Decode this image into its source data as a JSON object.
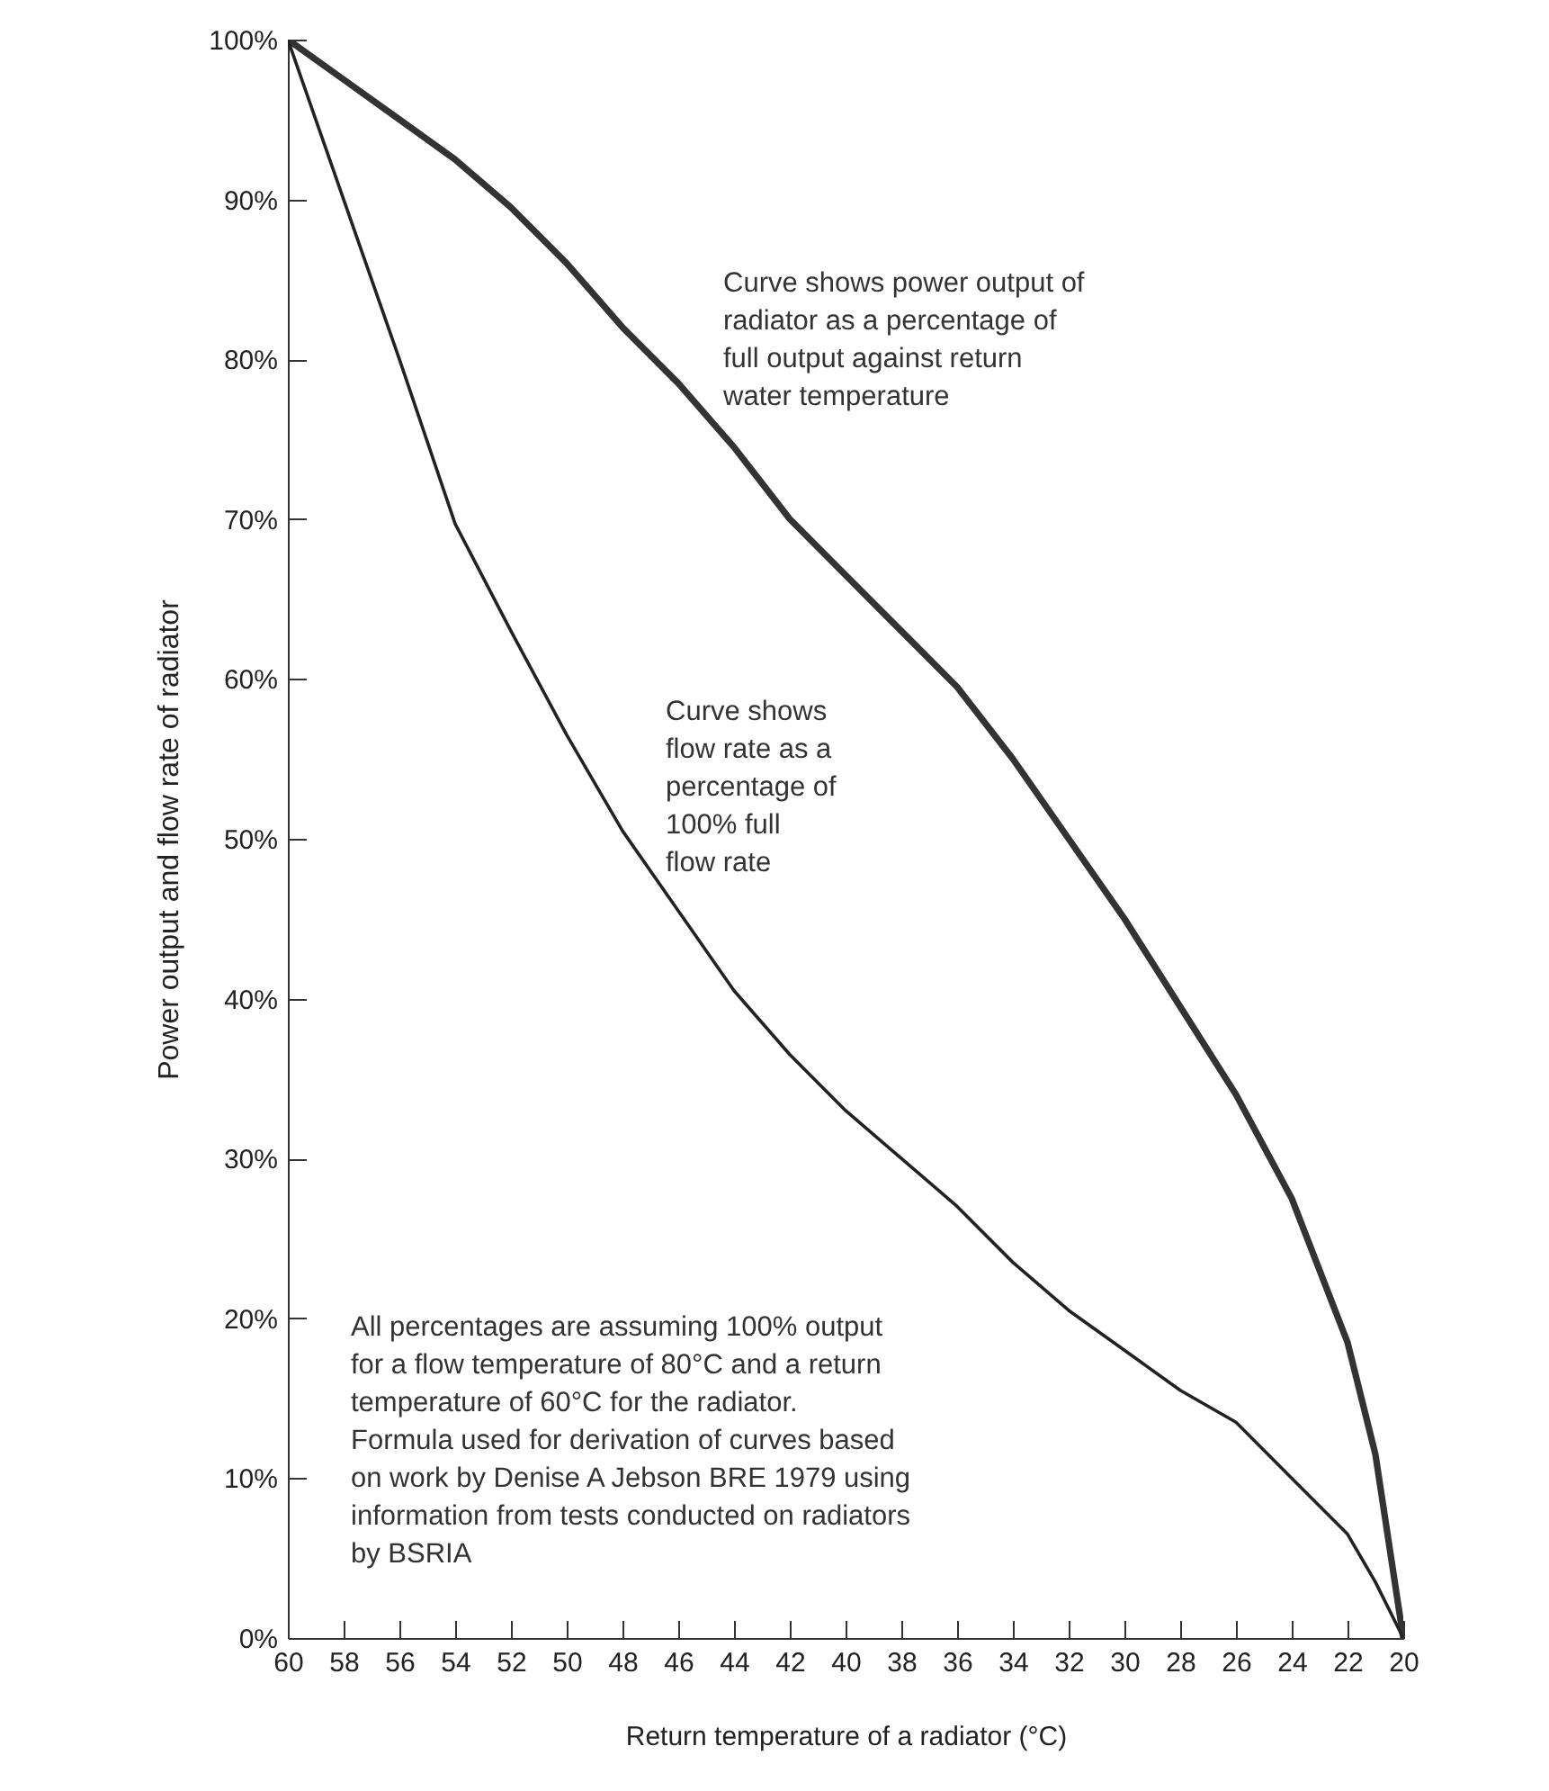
{
  "chart_data": {
    "type": "line",
    "xlabel": "Return temperature of a radiator (°C)",
    "ylabel": "Power output and flow rate of radiator",
    "x": [
      60,
      58,
      56,
      54,
      52,
      50,
      48,
      46,
      44,
      42,
      40,
      38,
      36,
      34,
      32,
      30,
      28,
      26,
      24,
      22,
      21,
      20
    ],
    "series": [
      {
        "color": "#333333",
        "values": [
          100,
          97.5,
          95,
          92.5,
          89.5,
          86,
          82,
          78.5,
          74.5,
          70,
          66.5,
          63,
          59.5,
          55,
          50,
          45,
          39.5,
          34,
          27.5,
          18.5,
          11.5,
          0
        ]
      },
      {
        "color": "#222222",
        "values": [
          100,
          90,
          80,
          69.7,
          63,
          56.5,
          50.5,
          45.5,
          40.5,
          36.5,
          33,
          30,
          27,
          23.5,
          20.5,
          18,
          15.5,
          13.5,
          10,
          6.5,
          3.5,
          0
        ]
      }
    ],
    "xlim": [
      60,
      20
    ],
    "xticks": [
      60,
      58,
      56,
      54,
      52,
      50,
      48,
      46,
      44,
      42,
      40,
      38,
      36,
      34,
      32,
      30,
      28,
      26,
      24,
      22,
      20
    ],
    "ylim": [
      0,
      100
    ],
    "yticks": [
      {
        "value": 0,
        "label": "0%"
      },
      {
        "value": 10,
        "label": "10%"
      },
      {
        "value": 20,
        "label": "20%"
      },
      {
        "value": 30,
        "label": "30%"
      },
      {
        "value": 40,
        "label": "40%"
      },
      {
        "value": 50,
        "label": "50%"
      },
      {
        "value": 60,
        "label": "60%"
      },
      {
        "value": 70,
        "label": "70%"
      },
      {
        "value": 80,
        "label": "80%"
      },
      {
        "value": 90,
        "label": "90%"
      },
      {
        "value": 100,
        "label": "100%"
      }
    ],
    "grid": false,
    "marker": "none",
    "line_style": "solid",
    "annotations": [
      "Curve shows power output of\nradiator as a percentage of\nfull output against return\nwater temperature",
      "Curve shows\nflow rate as a\npercentage of\n100% full\nflow rate",
      "All percentages are assuming 100% output\nfor a flow temperature of 80°C and a return\ntemperature of 60°C for the radiator.\nFormula used for derivation of curves based\non work by Denise A Jebson BRE 1979 using\ninformation from tests conducted on radiators\nby BSRIA"
    ]
  }
}
